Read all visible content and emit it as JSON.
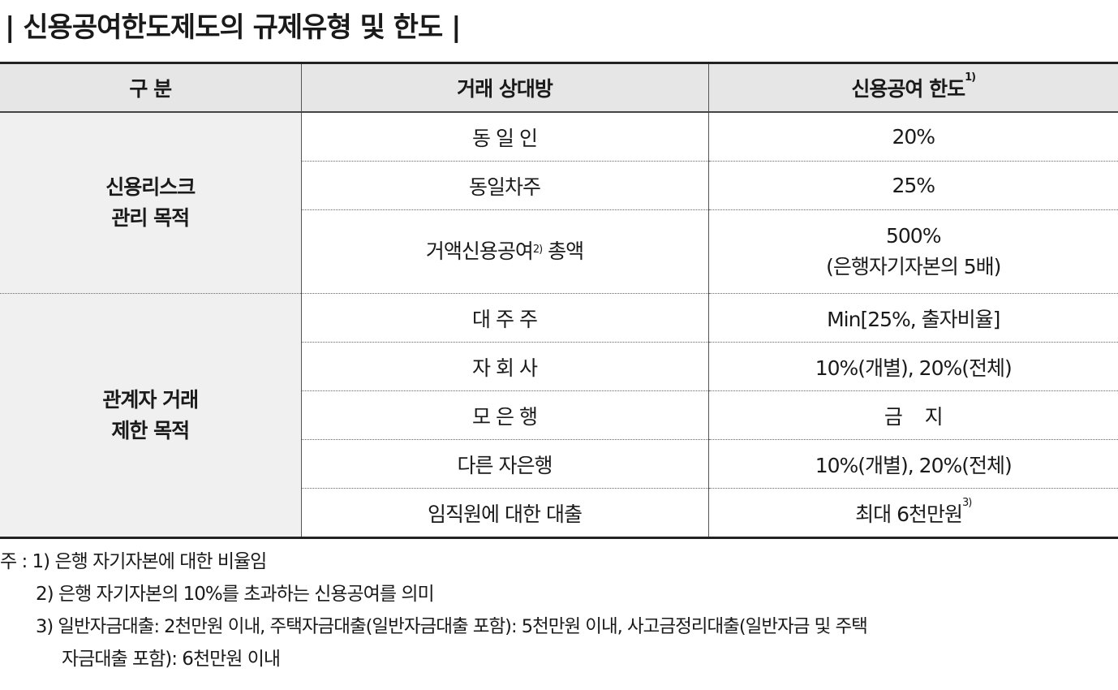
{
  "title": "| 신용공여한도제도의 규제유형 및 한도 |",
  "table": {
    "headers": {
      "col1": "구 분",
      "col2": "거래 상대방",
      "col3": "신용공여 한도",
      "col3_sup": "1)"
    },
    "groups": [
      {
        "label_line1": "신용리스크",
        "label_line2": "관리 목적",
        "rows": [
          {
            "party": "동 일 인",
            "limit": "20%"
          },
          {
            "party": "동일차주",
            "limit": "25%"
          },
          {
            "party": "거액신용공여",
            "party_sup": "2)",
            "party_suffix": " 총액",
            "limit": "500%",
            "limit_line2": "(은행자기자본의 5배)"
          }
        ]
      },
      {
        "label_line1": "관계자 거래",
        "label_line2": "제한 목적",
        "rows": [
          {
            "party": "대 주 주",
            "limit": "Min[25%, 출자비율]"
          },
          {
            "party": "자 회 사",
            "limit": "10%(개별), 20%(전체)"
          },
          {
            "party": "모 은 행",
            "limit": "금    지"
          },
          {
            "party": "다른 자은행",
            "limit": "10%(개별), 20%(전체)"
          },
          {
            "party": "임직원에 대한 대출",
            "limit": "최대 6천만원",
            "limit_sup": "3)"
          }
        ]
      }
    ]
  },
  "notes": {
    "note1": "주 : 1) 은행 자기자본에 대한 비율임",
    "note2": "2) 은행 자기자본의 10%를 초과하는 신용공여를 의미",
    "note3_line1": "3) 일반자금대출: 2천만원 이내, 주택자금대출(일반자금대출 포함): 5천만원 이내, 사고금정리대출(일반자금 및 주택",
    "note3_line2": "자금대출 포함): 6천만원 이내"
  }
}
